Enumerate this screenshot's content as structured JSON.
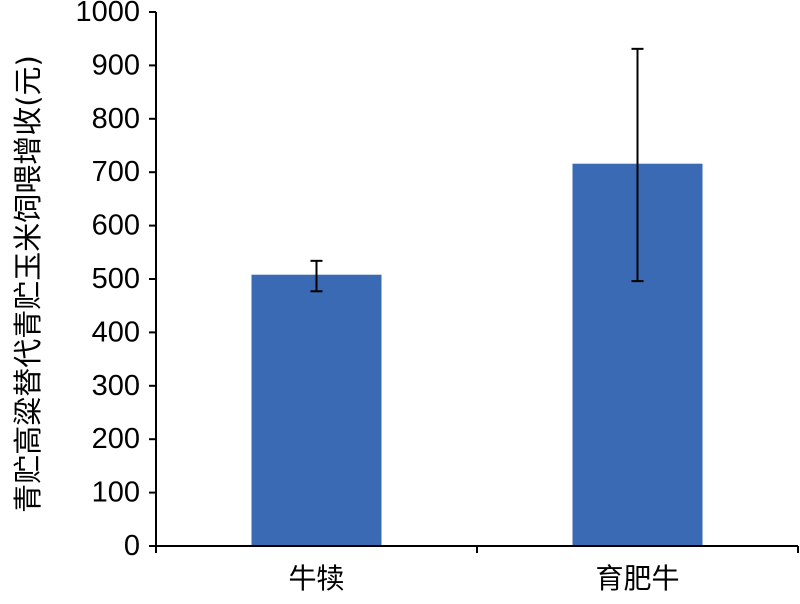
{
  "chart_data": {
    "type": "bar",
    "title": "",
    "xlabel": "",
    "ylabel": "青贮高粱替代青贮玉米饲喂增收(元)",
    "categories": [
      "牛犊",
      "育肥牛"
    ],
    "series": [
      {
        "values": [
          508,
          716
        ],
        "error_low": [
          477,
          496
        ],
        "error_high": [
          534,
          931
        ]
      }
    ],
    "ylim": [
      0,
      1000
    ],
    "yticks": [
      0,
      100,
      200,
      300,
      400,
      500,
      600,
      700,
      800,
      900,
      1000
    ],
    "ytick_labels": [
      "0",
      "100",
      "200",
      "300",
      "400",
      "500",
      "600",
      "700",
      "800",
      "900",
      "1000"
    ],
    "grid": false,
    "legend": "none",
    "bar_color": "#3a6ab3",
    "axis_color": "#000000"
  }
}
